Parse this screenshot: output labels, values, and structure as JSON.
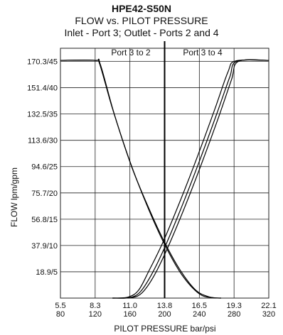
{
  "chart_data": {
    "type": "line",
    "title": "HPE42-S50N",
    "subtitle": "FLOW vs. PILOT PRESSURE",
    "subtitle2": "Inlet - Port 3; Outlet - Ports 2 and 4",
    "xlabel": "PILOT PRESSURE bar/psi",
    "ylabel": "FLOW lpm/gpm",
    "x_ticks": [
      "5.5",
      "8.3",
      "11.0",
      "13.8",
      "16.5",
      "19.3",
      "22.1"
    ],
    "x_ticks_psi": [
      "80",
      "120",
      "160",
      "200",
      "240",
      "280",
      "320"
    ],
    "x_tick_values": [
      80,
      120,
      160,
      200,
      240,
      280,
      320
    ],
    "y_ticks": [
      "18.9/5",
      "37.9/10",
      "56.8/15",
      "75.7/20",
      "94.6/25",
      "113.6/30",
      "132.5/35",
      "151.4/40",
      "170.3/45"
    ],
    "y_tick_values": [
      5,
      10,
      15,
      20,
      25,
      30,
      35,
      40,
      45
    ],
    "xlim": [
      80,
      320
    ],
    "ylim": [
      0,
      47.5
    ],
    "grid": true,
    "center_line": 200,
    "annotations": [
      "Port 3 to 2",
      "Port 3 to 4"
    ],
    "series": [
      {
        "curve": "port-3-to-2-a",
        "x": [
          80,
          120,
          125,
          140,
          160,
          180,
          200,
          220,
          240,
          255,
          265
        ],
        "y": [
          45.2,
          45.2,
          44.6,
          36,
          26,
          17.5,
          10.2,
          4.4,
          0.8,
          0.1,
          0
        ]
      },
      {
        "curve": "port-3-to-2-b",
        "x": [
          80,
          120,
          126,
          142,
          162,
          182,
          200,
          218,
          236,
          252,
          265
        ],
        "y": [
          45.2,
          45.2,
          44.4,
          35,
          25,
          17,
          10.6,
          5.3,
          1.5,
          0.2,
          0
        ]
      },
      {
        "curve": "port-3-to-4-a",
        "x": [
          140,
          160,
          172,
          185,
          200,
          220,
          240,
          260,
          275,
          283,
          320
        ],
        "y": [
          0,
          0.1,
          1.2,
          4.5,
          9.6,
          17.5,
          26,
          35,
          42,
          45,
          45.2
        ]
      },
      {
        "curve": "port-3-to-4-b",
        "x": [
          140,
          158,
          170,
          182,
          198,
          218,
          238,
          258,
          273,
          282,
          320
        ],
        "y": [
          0,
          0.2,
          1.5,
          5.2,
          10.6,
          18.5,
          27,
          36,
          43,
          45.1,
          45.2
        ]
      },
      {
        "curve": "port-3-to-4-c",
        "x": [
          140,
          162,
          174,
          187,
          202,
          222,
          242,
          262,
          277,
          285,
          320
        ],
        "y": [
          0,
          0.1,
          1,
          4,
          9,
          16.8,
          25.3,
          34.3,
          41.5,
          45,
          45.2
        ]
      }
    ]
  }
}
